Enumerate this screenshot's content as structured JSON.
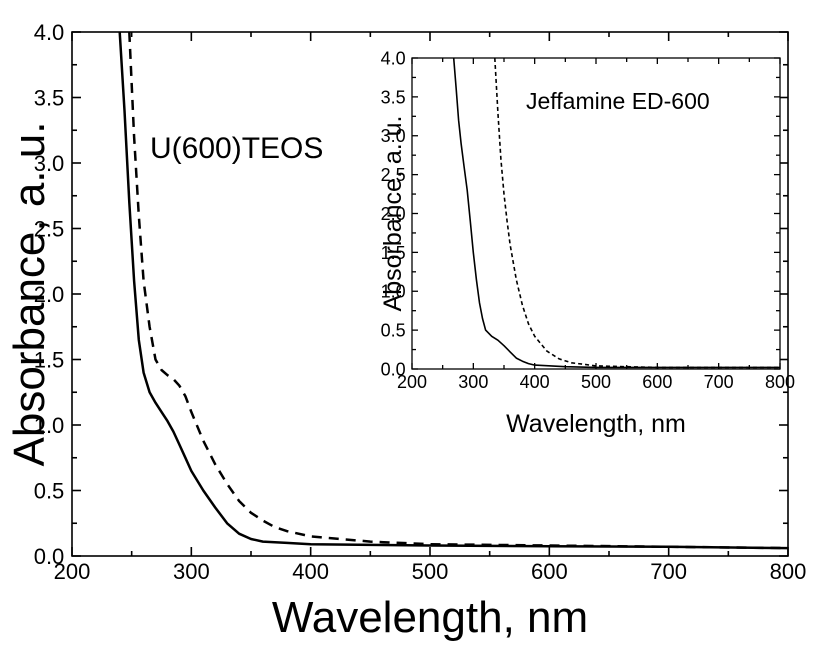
{
  "chart_data": [
    {
      "type": "line",
      "xlabel": "Wavelength, nm",
      "ylabel": "Absorbance, a. u.",
      "xlim": [
        200,
        800
      ],
      "ylim": [
        0.0,
        4.0
      ],
      "x_ticks": [
        "200",
        "300",
        "400",
        "500",
        "600",
        "700",
        "800"
      ],
      "y_ticks": [
        "0.0",
        "0.5",
        "1.0",
        "1.5",
        "2.0",
        "2.5",
        "3.0",
        "3.5",
        "4.0"
      ],
      "grid": false,
      "annotation": "U(600)TEOS",
      "series": [
        {
          "style": "solid",
          "color": "#000000",
          "points": [
            [
              240,
              4.0
            ],
            [
              244,
              3.4
            ],
            [
              248,
              2.7
            ],
            [
              252,
              2.1
            ],
            [
              256,
              1.65
            ],
            [
              260,
              1.4
            ],
            [
              265,
              1.25
            ],
            [
              270,
              1.17
            ],
            [
              275,
              1.1
            ],
            [
              280,
              1.03
            ],
            [
              285,
              0.95
            ],
            [
              290,
              0.85
            ],
            [
              295,
              0.75
            ],
            [
              300,
              0.65
            ],
            [
              310,
              0.5
            ],
            [
              320,
              0.37
            ],
            [
              330,
              0.25
            ],
            [
              340,
              0.17
            ],
            [
              350,
              0.13
            ],
            [
              360,
              0.11
            ],
            [
              380,
              0.1
            ],
            [
              400,
              0.09
            ],
            [
              450,
              0.085
            ],
            [
              500,
              0.08
            ],
            [
              600,
              0.075
            ],
            [
              700,
              0.07
            ],
            [
              800,
              0.06
            ]
          ]
        },
        {
          "style": "dashed",
          "color": "#000000",
          "points": [
            [
              248,
              4.0
            ],
            [
              252,
              3.2
            ],
            [
              256,
              2.6
            ],
            [
              260,
              2.1
            ],
            [
              265,
              1.75
            ],
            [
              270,
              1.5
            ],
            [
              275,
              1.42
            ],
            [
              280,
              1.38
            ],
            [
              285,
              1.35
            ],
            [
              290,
              1.3
            ],
            [
              295,
              1.22
            ],
            [
              300,
              1.1
            ],
            [
              310,
              0.88
            ],
            [
              320,
              0.7
            ],
            [
              330,
              0.55
            ],
            [
              340,
              0.42
            ],
            [
              350,
              0.33
            ],
            [
              360,
              0.27
            ],
            [
              370,
              0.22
            ],
            [
              380,
              0.19
            ],
            [
              400,
              0.15
            ],
            [
              450,
              0.11
            ],
            [
              500,
              0.09
            ],
            [
              600,
              0.08
            ],
            [
              700,
              0.07
            ],
            [
              800,
              0.06
            ]
          ]
        }
      ]
    },
    {
      "type": "line",
      "xlabel": "Wavelength, nm",
      "ylabel": "Absorbance, a. u.",
      "xlim": [
        200,
        800
      ],
      "ylim": [
        0.0,
        4.0
      ],
      "x_ticks": [
        "200",
        "300",
        "400",
        "500",
        "600",
        "700",
        "800"
      ],
      "y_ticks": [
        "0.0",
        "0.5",
        "1.0",
        "1.5",
        "2.0",
        "2.5",
        "3.0",
        "3.5",
        "4.0"
      ],
      "grid": false,
      "annotation": "Jeffamine ED-600",
      "series": [
        {
          "style": "solid",
          "color": "#000000",
          "points": [
            [
              268,
              4.0
            ],
            [
              272,
              3.6
            ],
            [
              276,
              3.2
            ],
            [
              280,
              2.9
            ],
            [
              285,
              2.6
            ],
            [
              290,
              2.3
            ],
            [
              295,
              1.9
            ],
            [
              300,
              1.5
            ],
            [
              305,
              1.15
            ],
            [
              310,
              0.85
            ],
            [
              315,
              0.65
            ],
            [
              320,
              0.5
            ],
            [
              330,
              0.42
            ],
            [
              340,
              0.37
            ],
            [
              350,
              0.3
            ],
            [
              360,
              0.22
            ],
            [
              370,
              0.14
            ],
            [
              380,
              0.1
            ],
            [
              390,
              0.07
            ],
            [
              400,
              0.05
            ],
            [
              450,
              0.03
            ],
            [
              500,
              0.02
            ],
            [
              600,
              0.02
            ],
            [
              700,
              0.02
            ],
            [
              800,
              0.02
            ]
          ]
        },
        {
          "style": "dashed",
          "color": "#000000",
          "points": [
            [
              335,
              4.0
            ],
            [
              340,
              3.3
            ],
            [
              345,
              2.7
            ],
            [
              350,
              2.25
            ],
            [
              355,
              1.9
            ],
            [
              360,
              1.6
            ],
            [
              370,
              1.15
            ],
            [
              380,
              0.82
            ],
            [
              390,
              0.58
            ],
            [
              400,
              0.42
            ],
            [
              420,
              0.23
            ],
            [
              440,
              0.13
            ],
            [
              460,
              0.08
            ],
            [
              480,
              0.06
            ],
            [
              500,
              0.04
            ],
            [
              550,
              0.03
            ],
            [
              600,
              0.02
            ],
            [
              700,
              0.02
            ],
            [
              800,
              0.02
            ]
          ]
        }
      ]
    }
  ]
}
